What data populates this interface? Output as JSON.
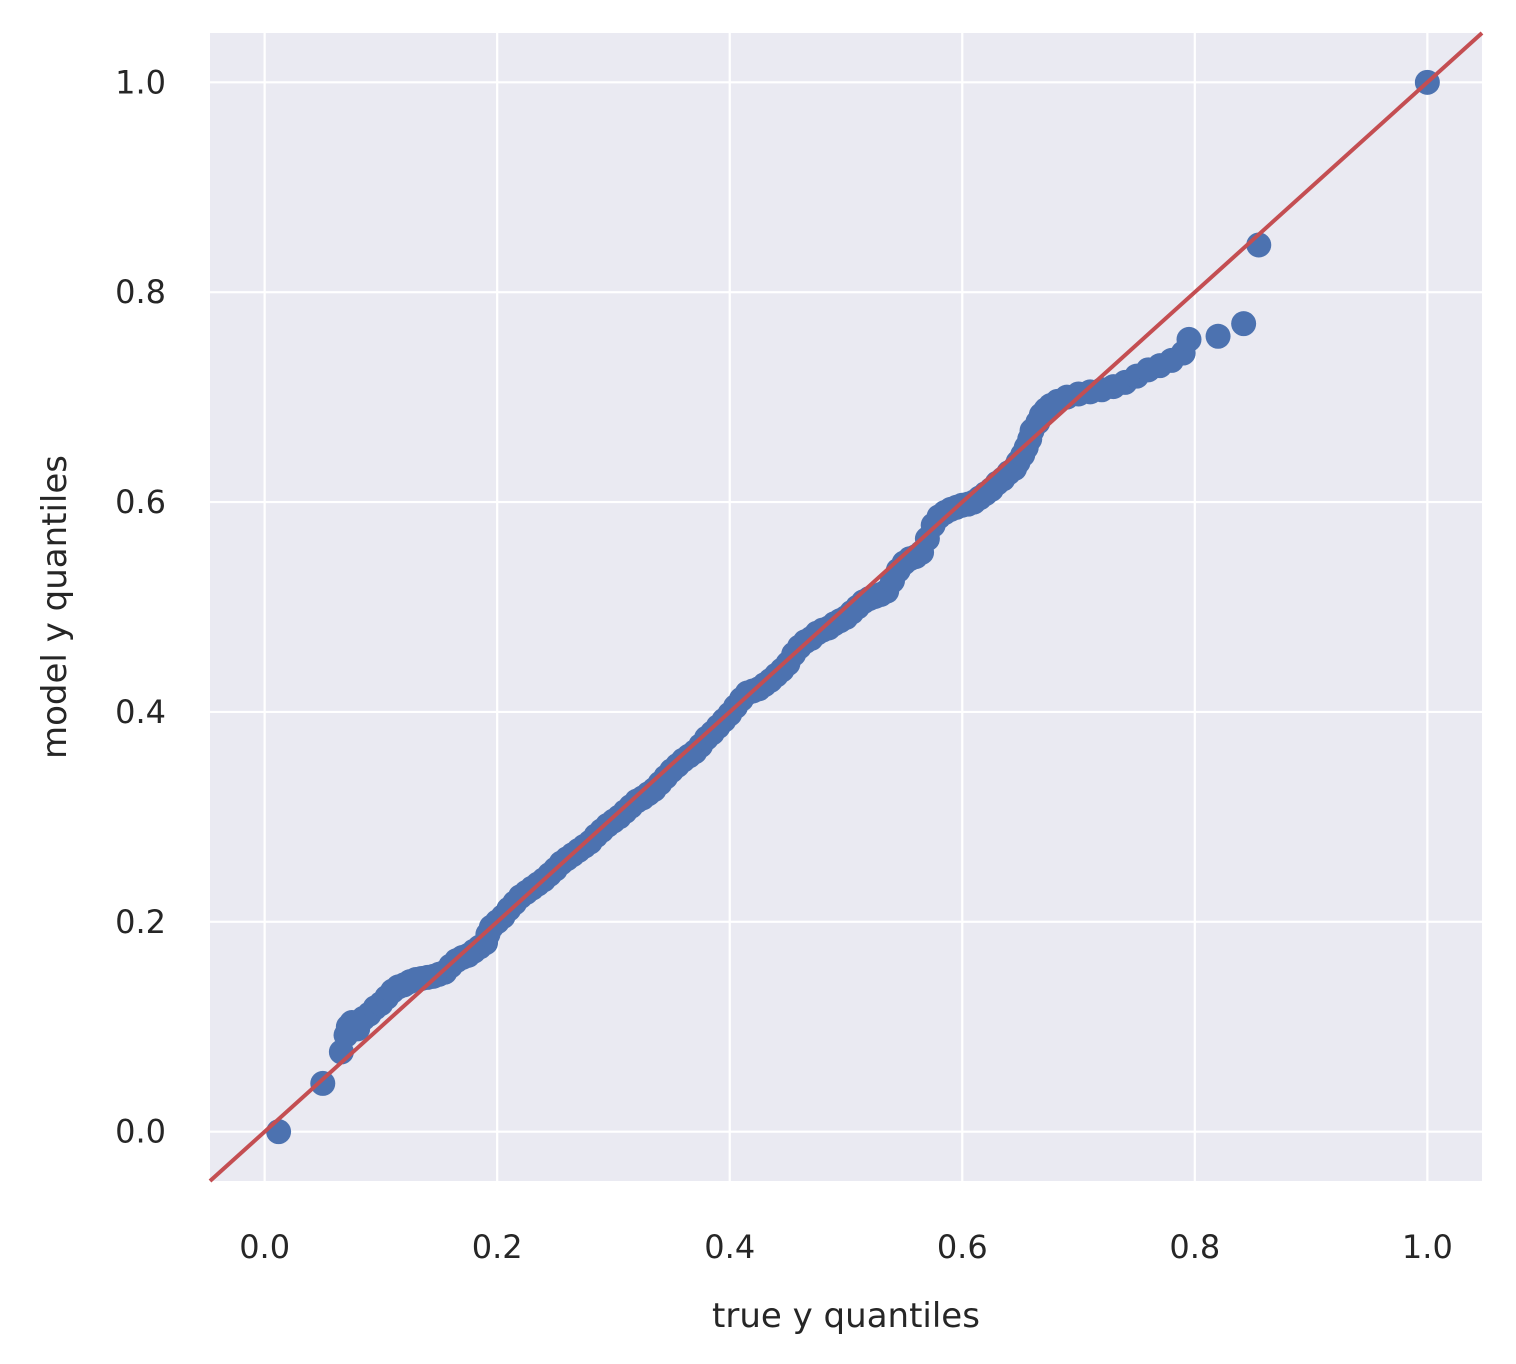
{
  "chart_data": {
    "type": "scatter",
    "title": "",
    "xlabel": "true y quantiles",
    "ylabel": "model y quantiles",
    "xlim": [
      -0.047,
      1.047
    ],
    "ylim": [
      -0.047,
      1.047
    ],
    "grid": true,
    "legend": "none",
    "x_ticks": [
      0.0,
      0.2,
      0.4,
      0.6,
      0.8,
      1.0
    ],
    "x_tick_labels": [
      "0.0",
      "0.2",
      "0.4",
      "0.6",
      "0.8",
      "1.0"
    ],
    "y_ticks": [
      0.0,
      0.2,
      0.4,
      0.6,
      0.8,
      1.0
    ],
    "y_tick_labels": [
      "0.0",
      "0.2",
      "0.4",
      "0.6",
      "0.8",
      "1.0"
    ],
    "colors": {
      "points": "#4c72b0",
      "reference_line": "#c44e52",
      "plot_background": "#eaeaf2",
      "grid": "#ffffff",
      "text": "#262626"
    },
    "reference_line": {
      "slope": 1,
      "intercept": 0
    },
    "points": [
      [
        0.012,
        0.0
      ],
      [
        0.05,
        0.046
      ],
      [
        0.066,
        0.076
      ],
      [
        0.07,
        0.092
      ],
      [
        0.072,
        0.1
      ],
      [
        0.075,
        0.104
      ],
      [
        0.08,
        0.098
      ],
      [
        0.085,
        0.108
      ],
      [
        0.09,
        0.112
      ],
      [
        0.095,
        0.118
      ],
      [
        0.1,
        0.122
      ],
      [
        0.105,
        0.128
      ],
      [
        0.11,
        0.134
      ],
      [
        0.115,
        0.138
      ],
      [
        0.12,
        0.14
      ],
      [
        0.125,
        0.143
      ],
      [
        0.13,
        0.145
      ],
      [
        0.135,
        0.146
      ],
      [
        0.14,
        0.147
      ],
      [
        0.145,
        0.148
      ],
      [
        0.15,
        0.15
      ],
      [
        0.155,
        0.152
      ],
      [
        0.16,
        0.158
      ],
      [
        0.165,
        0.163
      ],
      [
        0.17,
        0.166
      ],
      [
        0.175,
        0.168
      ],
      [
        0.18,
        0.172
      ],
      [
        0.185,
        0.176
      ],
      [
        0.19,
        0.18
      ],
      [
        0.192,
        0.188
      ],
      [
        0.195,
        0.195
      ],
      [
        0.2,
        0.2
      ],
      [
        0.205,
        0.205
      ],
      [
        0.21,
        0.212
      ],
      [
        0.215,
        0.218
      ],
      [
        0.22,
        0.224
      ],
      [
        0.225,
        0.228
      ],
      [
        0.23,
        0.232
      ],
      [
        0.235,
        0.236
      ],
      [
        0.24,
        0.24
      ],
      [
        0.245,
        0.245
      ],
      [
        0.25,
        0.25
      ],
      [
        0.255,
        0.256
      ],
      [
        0.26,
        0.26
      ],
      [
        0.265,
        0.264
      ],
      [
        0.27,
        0.268
      ],
      [
        0.275,
        0.272
      ],
      [
        0.28,
        0.276
      ],
      [
        0.285,
        0.282
      ],
      [
        0.29,
        0.287
      ],
      [
        0.295,
        0.292
      ],
      [
        0.3,
        0.296
      ],
      [
        0.305,
        0.3
      ],
      [
        0.31,
        0.305
      ],
      [
        0.315,
        0.31
      ],
      [
        0.32,
        0.315
      ],
      [
        0.325,
        0.318
      ],
      [
        0.33,
        0.322
      ],
      [
        0.335,
        0.326
      ],
      [
        0.34,
        0.332
      ],
      [
        0.345,
        0.338
      ],
      [
        0.35,
        0.344
      ],
      [
        0.355,
        0.349
      ],
      [
        0.36,
        0.354
      ],
      [
        0.365,
        0.358
      ],
      [
        0.37,
        0.362
      ],
      [
        0.375,
        0.368
      ],
      [
        0.38,
        0.375
      ],
      [
        0.385,
        0.38
      ],
      [
        0.39,
        0.386
      ],
      [
        0.395,
        0.392
      ],
      [
        0.4,
        0.398
      ],
      [
        0.405,
        0.405
      ],
      [
        0.41,
        0.412
      ],
      [
        0.415,
        0.418
      ],
      [
        0.42,
        0.42
      ],
      [
        0.425,
        0.422
      ],
      [
        0.43,
        0.426
      ],
      [
        0.435,
        0.43
      ],
      [
        0.44,
        0.435
      ],
      [
        0.445,
        0.44
      ],
      [
        0.45,
        0.446
      ],
      [
        0.455,
        0.455
      ],
      [
        0.46,
        0.462
      ],
      [
        0.465,
        0.467
      ],
      [
        0.47,
        0.47
      ],
      [
        0.475,
        0.475
      ],
      [
        0.48,
        0.478
      ],
      [
        0.485,
        0.48
      ],
      [
        0.49,
        0.484
      ],
      [
        0.495,
        0.487
      ],
      [
        0.5,
        0.49
      ],
      [
        0.505,
        0.495
      ],
      [
        0.51,
        0.5
      ],
      [
        0.515,
        0.505
      ],
      [
        0.52,
        0.508
      ],
      [
        0.525,
        0.51
      ],
      [
        0.53,
        0.512
      ],
      [
        0.535,
        0.515
      ],
      [
        0.54,
        0.525
      ],
      [
        0.545,
        0.535
      ],
      [
        0.55,
        0.542
      ],
      [
        0.555,
        0.546
      ],
      [
        0.56,
        0.548
      ],
      [
        0.565,
        0.552
      ],
      [
        0.57,
        0.565
      ],
      [
        0.575,
        0.578
      ],
      [
        0.58,
        0.586
      ],
      [
        0.585,
        0.59
      ],
      [
        0.59,
        0.593
      ],
      [
        0.595,
        0.595
      ],
      [
        0.6,
        0.597
      ],
      [
        0.605,
        0.598
      ],
      [
        0.61,
        0.6
      ],
      [
        0.615,
        0.604
      ],
      [
        0.62,
        0.608
      ],
      [
        0.625,
        0.612
      ],
      [
        0.63,
        0.618
      ],
      [
        0.635,
        0.622
      ],
      [
        0.64,
        0.628
      ],
      [
        0.645,
        0.632
      ],
      [
        0.648,
        0.638
      ],
      [
        0.652,
        0.645
      ],
      [
        0.655,
        0.652
      ],
      [
        0.658,
        0.66
      ],
      [
        0.66,
        0.668
      ],
      [
        0.665,
        0.676
      ],
      [
        0.668,
        0.683
      ],
      [
        0.672,
        0.688
      ],
      [
        0.676,
        0.692
      ],
      [
        0.682,
        0.696
      ],
      [
        0.69,
        0.7
      ],
      [
        0.7,
        0.703
      ],
      [
        0.71,
        0.705
      ],
      [
        0.72,
        0.707
      ],
      [
        0.73,
        0.71
      ],
      [
        0.74,
        0.714
      ],
      [
        0.75,
        0.72
      ],
      [
        0.76,
        0.726
      ],
      [
        0.77,
        0.73
      ],
      [
        0.78,
        0.735
      ],
      [
        0.79,
        0.742
      ],
      [
        0.795,
        0.755
      ],
      [
        0.82,
        0.758
      ],
      [
        0.842,
        0.77
      ],
      [
        0.855,
        0.845
      ],
      [
        1.0,
        1.0
      ]
    ]
  }
}
